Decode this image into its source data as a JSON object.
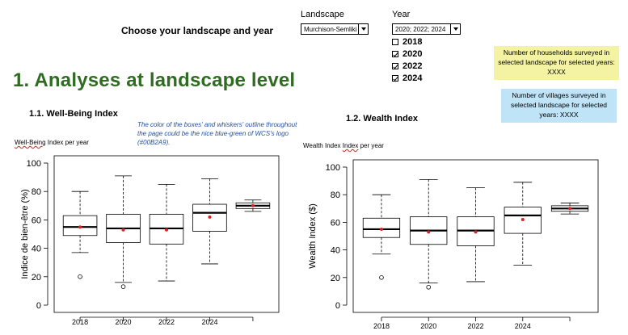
{
  "header": {
    "choose_label": "Choose your landscape and year",
    "landscape_label": "Landscape",
    "landscape_value": "Murchison-Semliki",
    "year_label": "Year",
    "year_value": "2020; 2022; 2024",
    "year_options": [
      {
        "label": "2018",
        "checked": false
      },
      {
        "label": "2020",
        "checked": true
      },
      {
        "label": "2022",
        "checked": true
      },
      {
        "label": "2024",
        "checked": true
      }
    ]
  },
  "info_boxes": {
    "households": "Number of households surveyed in selected landscape for selected years: XXXX",
    "villages": "Number of villages surveyed in selected landscape for selected years: XXXX"
  },
  "section_title": "1. Analyses at landscape level",
  "wellbeing": {
    "heading": "1.1. Well-Being Index",
    "note": "The color of the boxes' and whiskers' outline throughout the page could be the nice blue-green of WCS's logo (#00B2A9).",
    "plot_title_part1": "Well-Being",
    "plot_title_part2": " Index per year"
  },
  "wealth": {
    "heading": "1.2. Wealth Index",
    "plot_title_part1": "Wealth Index ",
    "plot_title_part2": "Index",
    "plot_title_part3": " per year"
  },
  "colors": {
    "heading_green": "#2f6b22",
    "mean_dot": "#e02020",
    "note_blue": "#1f4f9c"
  },
  "chart_data": [
    {
      "type": "box",
      "ylabel": "Indice de bien-être (%)",
      "ylim": [
        0,
        100
      ],
      "yticks": [
        0,
        20,
        40,
        60,
        80,
        100
      ],
      "categories": [
        "2018",
        "2020",
        "2022",
        "2024",
        ""
      ],
      "boxes": [
        {
          "min": 37,
          "q1": 49,
          "median": 55,
          "q3": 63,
          "max": 80,
          "mean": 55,
          "outliers": [
            20
          ]
        },
        {
          "min": 16,
          "q1": 44,
          "median": 54,
          "q3": 64,
          "max": 91,
          "mean": 53,
          "outliers": [
            13
          ]
        },
        {
          "min": 17,
          "q1": 43,
          "median": 54,
          "q3": 64,
          "max": 85,
          "mean": 53,
          "outliers": []
        },
        {
          "min": 29,
          "q1": 52,
          "median": 65,
          "q3": 71,
          "max": 89,
          "mean": 62,
          "outliers": []
        },
        {
          "min": 66,
          "q1": 68,
          "median": 70,
          "q3": 72,
          "max": 74,
          "mean": 70,
          "outliers": []
        }
      ]
    },
    {
      "type": "box",
      "ylabel": "Wealth Index ($)",
      "ylim": [
        0,
        100
      ],
      "yticks": [
        0,
        20,
        40,
        60,
        80,
        100
      ],
      "categories": [
        "2018",
        "2020",
        "2022",
        "2024",
        ""
      ],
      "boxes": [
        {
          "min": 37,
          "q1": 49,
          "median": 55,
          "q3": 63,
          "max": 80,
          "mean": 55,
          "outliers": [
            20
          ]
        },
        {
          "min": 16,
          "q1": 44,
          "median": 54,
          "q3": 64,
          "max": 91,
          "mean": 53,
          "outliers": [
            13
          ]
        },
        {
          "min": 17,
          "q1": 43,
          "median": 54,
          "q3": 64,
          "max": 85,
          "mean": 53,
          "outliers": []
        },
        {
          "min": 29,
          "q1": 52,
          "median": 65,
          "q3": 71,
          "max": 89,
          "mean": 62,
          "outliers": []
        },
        {
          "min": 66,
          "q1": 68,
          "median": 70,
          "q3": 72,
          "max": 74,
          "mean": 70,
          "outliers": []
        }
      ]
    }
  ]
}
